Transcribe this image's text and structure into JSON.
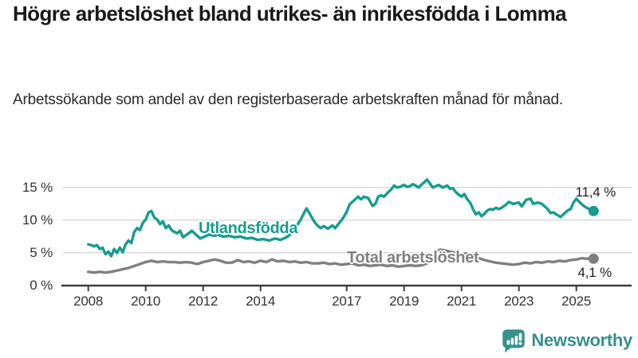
{
  "header": {
    "title": "Högre arbetslöshet bland utrikes- än inrikesfödda i Lomma",
    "subtitle": "Arbetssökande som andel av den registerbaserade arbetskraften månad för månad."
  },
  "chart_data": {
    "type": "line",
    "title": "Högre arbetslöshet bland utrikes- än inrikesfödda i Lomma",
    "subtitle": "Arbetssökande som andel av den registerbaserade arbetskraften månad för månad.",
    "unit": "%",
    "x_range": [
      2008,
      2025.6
    ],
    "y_range": [
      0,
      16.5
    ],
    "grid": "horizontal",
    "legend_position": "inline-labels",
    "x_ticks": [
      {
        "year": 2008,
        "label": "2008"
      },
      {
        "year": 2010,
        "label": "2010"
      },
      {
        "year": 2012,
        "label": "2012"
      },
      {
        "year": 2014,
        "label": "2014"
      },
      {
        "year": 2017,
        "label": "2017"
      },
      {
        "year": 2019,
        "label": "2019"
      },
      {
        "year": 2021,
        "label": "2021"
      },
      {
        "year": 2023,
        "label": "2023"
      },
      {
        "year": 2025,
        "label": "2025"
      }
    ],
    "y_ticks": [
      {
        "value": 15,
        "label": "15 %"
      },
      {
        "value": 10,
        "label": "10 %"
      },
      {
        "value": 5,
        "label": "5 %"
      },
      {
        "value": 0,
        "label": "0 %"
      }
    ],
    "series": [
      {
        "name": "Utlandsfödda",
        "color": "#169d8f",
        "end_value": 11.4,
        "end_label": "11,4 %",
        "points": [
          [
            2008.0,
            6.3
          ],
          [
            2008.1,
            6.2
          ],
          [
            2008.2,
            6.0
          ],
          [
            2008.3,
            6.2
          ],
          [
            2008.4,
            5.6
          ],
          [
            2008.5,
            5.8
          ],
          [
            2008.6,
            4.8
          ],
          [
            2008.7,
            5.2
          ],
          [
            2008.8,
            4.5
          ],
          [
            2008.9,
            5.6
          ],
          [
            2009.0,
            5.0
          ],
          [
            2009.1,
            5.8
          ],
          [
            2009.2,
            5.1
          ],
          [
            2009.3,
            6.3
          ],
          [
            2009.4,
            6.9
          ],
          [
            2009.5,
            6.5
          ],
          [
            2009.6,
            8.2
          ],
          [
            2009.7,
            8.8
          ],
          [
            2009.8,
            8.5
          ],
          [
            2009.9,
            9.6
          ],
          [
            2010.0,
            10.1
          ],
          [
            2010.1,
            11.2
          ],
          [
            2010.2,
            11.4
          ],
          [
            2010.3,
            10.4
          ],
          [
            2010.4,
            10.1
          ],
          [
            2010.5,
            9.4
          ],
          [
            2010.6,
            9.8
          ],
          [
            2010.7,
            8.8
          ],
          [
            2010.8,
            9.2
          ],
          [
            2010.9,
            8.5
          ],
          [
            2011.0,
            8.2
          ],
          [
            2011.1,
            8.0
          ],
          [
            2011.2,
            8.4
          ],
          [
            2011.3,
            7.4
          ],
          [
            2011.4,
            7.7
          ],
          [
            2011.5,
            8.0
          ],
          [
            2011.6,
            8.4
          ],
          [
            2011.8,
            7.6
          ],
          [
            2011.9,
            7.2
          ],
          [
            2012.0,
            7.4
          ],
          [
            2012.2,
            7.8
          ],
          [
            2012.4,
            7.6
          ],
          [
            2012.5,
            7.8
          ],
          [
            2012.7,
            7.5
          ],
          [
            2012.9,
            7.6
          ],
          [
            2013.1,
            7.4
          ],
          [
            2013.3,
            7.5
          ],
          [
            2013.5,
            7.2
          ],
          [
            2013.7,
            7.3
          ],
          [
            2013.9,
            7.0
          ],
          [
            2014.1,
            7.1
          ],
          [
            2014.3,
            6.9
          ],
          [
            2014.5,
            7.2
          ],
          [
            2014.7,
            7.0
          ],
          [
            2014.9,
            7.4
          ],
          [
            2015.0,
            7.7
          ],
          [
            2015.1,
            8.1
          ],
          [
            2015.2,
            8.7
          ],
          [
            2015.3,
            9.4
          ],
          [
            2015.4,
            10.1
          ],
          [
            2015.5,
            11.0
          ],
          [
            2015.6,
            11.8
          ],
          [
            2015.7,
            11.1
          ],
          [
            2015.8,
            10.3
          ],
          [
            2015.9,
            9.6
          ],
          [
            2016.0,
            9.1
          ],
          [
            2016.1,
            8.8
          ],
          [
            2016.2,
            9.1
          ],
          [
            2016.35,
            8.7
          ],
          [
            2016.5,
            9.2
          ],
          [
            2016.6,
            8.8
          ],
          [
            2016.8,
            9.9
          ],
          [
            2016.9,
            10.5
          ],
          [
            2017.0,
            11.3
          ],
          [
            2017.1,
            12.4
          ],
          [
            2017.25,
            13.0
          ],
          [
            2017.4,
            13.6
          ],
          [
            2017.5,
            13.2
          ],
          [
            2017.6,
            13.6
          ],
          [
            2017.75,
            13.4
          ],
          [
            2017.9,
            12.2
          ],
          [
            2018.0,
            12.5
          ],
          [
            2018.1,
            13.6
          ],
          [
            2018.2,
            13.8
          ],
          [
            2018.3,
            13.6
          ],
          [
            2018.45,
            14.3
          ],
          [
            2018.55,
            14.7
          ],
          [
            2018.65,
            15.3
          ],
          [
            2018.75,
            15.0
          ],
          [
            2018.85,
            15.1
          ],
          [
            2019.0,
            15.4
          ],
          [
            2019.1,
            15.1
          ],
          [
            2019.2,
            15.2
          ],
          [
            2019.3,
            15.5
          ],
          [
            2019.4,
            15.3
          ],
          [
            2019.5,
            15.0
          ],
          [
            2019.6,
            15.4
          ],
          [
            2019.7,
            15.8
          ],
          [
            2019.8,
            16.2
          ],
          [
            2019.9,
            15.6
          ],
          [
            2020.0,
            15.0
          ],
          [
            2020.1,
            15.2
          ],
          [
            2020.2,
            15.4
          ],
          [
            2020.35,
            15.0
          ],
          [
            2020.5,
            15.3
          ],
          [
            2020.6,
            14.8
          ],
          [
            2020.7,
            14.9
          ],
          [
            2020.8,
            14.3
          ],
          [
            2020.9,
            13.9
          ],
          [
            2021.0,
            13.6
          ],
          [
            2021.1,
            14.0
          ],
          [
            2021.2,
            13.2
          ],
          [
            2021.3,
            12.7
          ],
          [
            2021.4,
            11.7
          ],
          [
            2021.5,
            10.9
          ],
          [
            2021.6,
            11.2
          ],
          [
            2021.7,
            10.6
          ],
          [
            2021.8,
            11.0
          ],
          [
            2021.9,
            11.5
          ],
          [
            2022.0,
            11.7
          ],
          [
            2022.1,
            11.6
          ],
          [
            2022.2,
            11.9
          ],
          [
            2022.3,
            11.7
          ],
          [
            2022.4,
            11.9
          ],
          [
            2022.55,
            12.4
          ],
          [
            2022.65,
            12.8
          ],
          [
            2022.8,
            12.5
          ],
          [
            2022.9,
            12.6
          ],
          [
            2023.0,
            12.7
          ],
          [
            2023.1,
            12.1
          ],
          [
            2023.25,
            13.1
          ],
          [
            2023.4,
            13.3
          ],
          [
            2023.5,
            12.5
          ],
          [
            2023.65,
            12.7
          ],
          [
            2023.8,
            12.5
          ],
          [
            2023.9,
            12.1
          ],
          [
            2024.0,
            11.7
          ],
          [
            2024.1,
            11.1
          ],
          [
            2024.2,
            11.2
          ],
          [
            2024.3,
            10.9
          ],
          [
            2024.45,
            10.5
          ],
          [
            2024.55,
            10.9
          ],
          [
            2024.7,
            11.5
          ],
          [
            2024.8,
            11.7
          ],
          [
            2024.9,
            12.7
          ],
          [
            2025.0,
            13.3
          ],
          [
            2025.1,
            12.8
          ],
          [
            2025.2,
            12.4
          ],
          [
            2025.35,
            11.9
          ],
          [
            2025.5,
            11.6
          ],
          [
            2025.6,
            11.4
          ]
        ]
      },
      {
        "name": "Total arbetslöshet",
        "color": "#808080",
        "end_value": 4.1,
        "end_label": "4,1 %",
        "points": [
          [
            2008.0,
            2.1
          ],
          [
            2008.2,
            2.0
          ],
          [
            2008.4,
            2.1
          ],
          [
            2008.6,
            2.0
          ],
          [
            2008.8,
            2.1
          ],
          [
            2009.0,
            2.3
          ],
          [
            2009.2,
            2.5
          ],
          [
            2009.4,
            2.7
          ],
          [
            2009.6,
            3.0
          ],
          [
            2009.8,
            3.3
          ],
          [
            2010.0,
            3.6
          ],
          [
            2010.2,
            3.8
          ],
          [
            2010.4,
            3.6
          ],
          [
            2010.6,
            3.7
          ],
          [
            2010.8,
            3.6
          ],
          [
            2011.0,
            3.6
          ],
          [
            2011.2,
            3.5
          ],
          [
            2011.4,
            3.6
          ],
          [
            2011.6,
            3.5
          ],
          [
            2011.8,
            3.3
          ],
          [
            2012.0,
            3.6
          ],
          [
            2012.2,
            3.8
          ],
          [
            2012.4,
            4.0
          ],
          [
            2012.6,
            3.8
          ],
          [
            2012.8,
            3.5
          ],
          [
            2013.0,
            3.5
          ],
          [
            2013.2,
            3.9
          ],
          [
            2013.4,
            3.6
          ],
          [
            2013.6,
            3.7
          ],
          [
            2013.8,
            3.5
          ],
          [
            2014.0,
            3.8
          ],
          [
            2014.2,
            3.6
          ],
          [
            2014.4,
            4.0
          ],
          [
            2014.6,
            3.7
          ],
          [
            2014.8,
            3.8
          ],
          [
            2015.0,
            3.6
          ],
          [
            2015.2,
            3.7
          ],
          [
            2015.4,
            3.5
          ],
          [
            2015.6,
            3.6
          ],
          [
            2015.8,
            3.4
          ],
          [
            2016.0,
            3.4
          ],
          [
            2016.2,
            3.5
          ],
          [
            2016.4,
            3.3
          ],
          [
            2016.6,
            3.4
          ],
          [
            2016.8,
            3.2
          ],
          [
            2017.0,
            3.3
          ],
          [
            2017.2,
            3.4
          ],
          [
            2017.4,
            3.1
          ],
          [
            2017.6,
            3.2
          ],
          [
            2017.8,
            3.0
          ],
          [
            2018.0,
            3.1
          ],
          [
            2018.2,
            3.2
          ],
          [
            2018.4,
            3.0
          ],
          [
            2018.6,
            3.1
          ],
          [
            2018.8,
            2.9
          ],
          [
            2019.0,
            3.0
          ],
          [
            2019.2,
            3.1
          ],
          [
            2019.4,
            3.0
          ],
          [
            2019.6,
            3.1
          ],
          [
            2019.8,
            3.4
          ],
          [
            2020.0,
            4.2
          ],
          [
            2020.1,
            5.0
          ],
          [
            2020.25,
            5.5
          ],
          [
            2020.4,
            5.4
          ],
          [
            2020.6,
            5.2
          ],
          [
            2020.8,
            5.0
          ],
          [
            2021.0,
            4.8
          ],
          [
            2021.2,
            4.9
          ],
          [
            2021.4,
            4.5
          ],
          [
            2021.6,
            4.2
          ],
          [
            2021.8,
            3.9
          ],
          [
            2022.0,
            3.7
          ],
          [
            2022.2,
            3.5
          ],
          [
            2022.4,
            3.4
          ],
          [
            2022.6,
            3.3
          ],
          [
            2022.8,
            3.2
          ],
          [
            2023.0,
            3.3
          ],
          [
            2023.2,
            3.5
          ],
          [
            2023.4,
            3.4
          ],
          [
            2023.6,
            3.6
          ],
          [
            2023.8,
            3.5
          ],
          [
            2024.0,
            3.7
          ],
          [
            2024.2,
            3.6
          ],
          [
            2024.4,
            3.8
          ],
          [
            2024.6,
            3.7
          ],
          [
            2024.8,
            3.9
          ],
          [
            2025.0,
            4.0
          ],
          [
            2025.2,
            4.2
          ],
          [
            2025.35,
            4.1
          ],
          [
            2025.5,
            4.2
          ],
          [
            2025.6,
            4.1
          ]
        ]
      }
    ]
  },
  "footer": {
    "brand": "Newsworthy",
    "brand_color": "#37908c"
  }
}
